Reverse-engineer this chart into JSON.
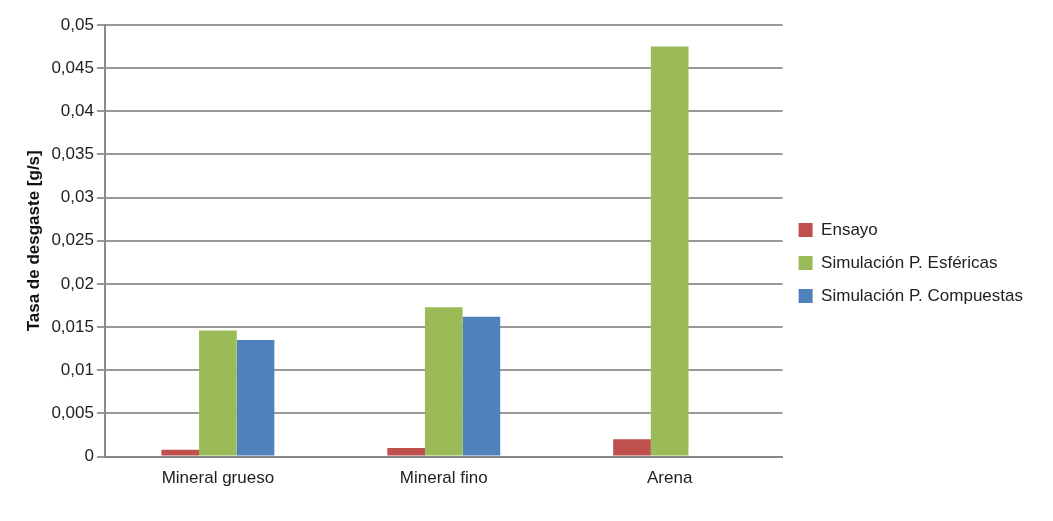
{
  "chart_data": {
    "type": "bar",
    "ylabel": "Tasa de desgaste [g/s]",
    "categories": [
      "Mineral grueso",
      "Mineral fino",
      "Arena"
    ],
    "series": [
      {
        "name": "Ensayo",
        "color": "#c0504d",
        "values": [
          0.0008,
          0.001,
          0.002
        ]
      },
      {
        "name": "Simulación P. Esféricas",
        "color": "#9bbb59",
        "values": [
          0.0146,
          0.0173,
          0.0475
        ]
      },
      {
        "name": "Simulación P. Compuestas",
        "color": "#4f81bd",
        "values": [
          0.0135,
          0.0162,
          null
        ]
      }
    ],
    "ylim": [
      0,
      0.05
    ],
    "yticks": [
      {
        "value": 0,
        "label": "0"
      },
      {
        "value": 0.005,
        "label": "0,005"
      },
      {
        "value": 0.01,
        "label": "0,01"
      },
      {
        "value": 0.015,
        "label": "0,015"
      },
      {
        "value": 0.02,
        "label": "0,02"
      },
      {
        "value": 0.025,
        "label": "0,025"
      },
      {
        "value": 0.03,
        "label": "0,03"
      },
      {
        "value": 0.035,
        "label": "0,035"
      },
      {
        "value": 0.04,
        "label": "0,04"
      },
      {
        "value": 0.045,
        "label": "0,045"
      },
      {
        "value": 0.05,
        "label": "0,05"
      }
    ],
    "grid": "y",
    "legend": "right"
  }
}
